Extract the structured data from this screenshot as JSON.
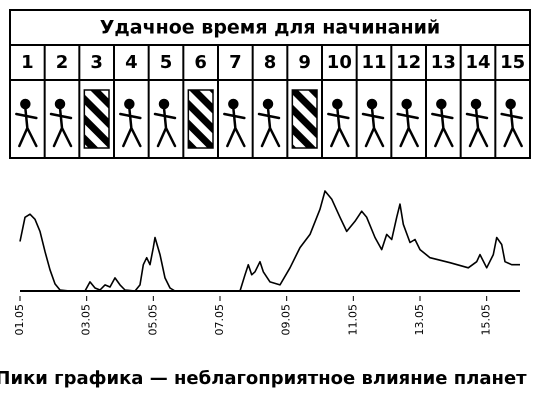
{
  "header": {
    "title": "Удачное время для начинаний",
    "days": [
      1,
      2,
      3,
      4,
      5,
      6,
      7,
      8,
      9,
      10,
      11,
      12,
      13,
      14,
      15
    ]
  },
  "chart_data": {
    "type": "line",
    "caption": "Пики графика — неблагоприятное влияние планет",
    "x": [
      1.0,
      1.15,
      1.3,
      1.45,
      1.6,
      1.75,
      1.9,
      2.05,
      2.2,
      2.5,
      2.95,
      3.1,
      3.25,
      3.4,
      3.55,
      3.7,
      3.85,
      4.0,
      4.15,
      4.45,
      4.6,
      4.7,
      4.8,
      4.9,
      5.0,
      5.05,
      5.2,
      5.35,
      5.5,
      5.65,
      7.6,
      7.75,
      7.85,
      7.95,
      8.05,
      8.2,
      8.3,
      8.5,
      8.8,
      9.1,
      9.4,
      9.7,
      10.0,
      10.15,
      10.35,
      10.6,
      10.8,
      11.05,
      11.25,
      11.4,
      11.65,
      11.85,
      12.0,
      12.15,
      12.3,
      12.4,
      12.5,
      12.7,
      12.85,
      13.0,
      13.3,
      13.9,
      14.45,
      14.7,
      14.8,
      15.0,
      15.2,
      15.3,
      15.45,
      15.55,
      15.75,
      16.0
    ],
    "values": [
      49,
      73,
      76,
      71,
      59,
      39,
      21,
      7,
      1,
      0,
      0,
      9,
      3,
      1,
      6,
      4,
      13,
      6,
      1,
      0,
      6,
      26,
      33,
      26,
      43,
      53,
      36,
      13,
      3,
      0,
      0,
      16,
      26,
      16,
      19,
      29,
      19,
      9,
      6,
      23,
      43,
      56,
      81,
      99,
      91,
      73,
      59,
      69,
      79,
      73,
      53,
      41,
      56,
      51,
      73,
      86,
      66,
      48,
      51,
      41,
      33,
      28,
      23,
      29,
      36,
      23,
      36,
      53,
      46,
      29,
      26,
      26
    ],
    "color": "#000000",
    "xlim": [
      1,
      16
    ],
    "ylim": [
      0,
      100
    ],
    "xticks": [
      {
        "value": 1,
        "label": "01.05"
      },
      {
        "value": 3,
        "label": "03.05"
      },
      {
        "value": 5,
        "label": "05.05"
      },
      {
        "value": 7,
        "label": "07.05"
      },
      {
        "value": 9,
        "label": "09.05"
      },
      {
        "value": 11,
        "label": "11.05"
      },
      {
        "value": 13,
        "label": "13.05"
      },
      {
        "value": 15,
        "label": "15.05"
      }
    ]
  }
}
